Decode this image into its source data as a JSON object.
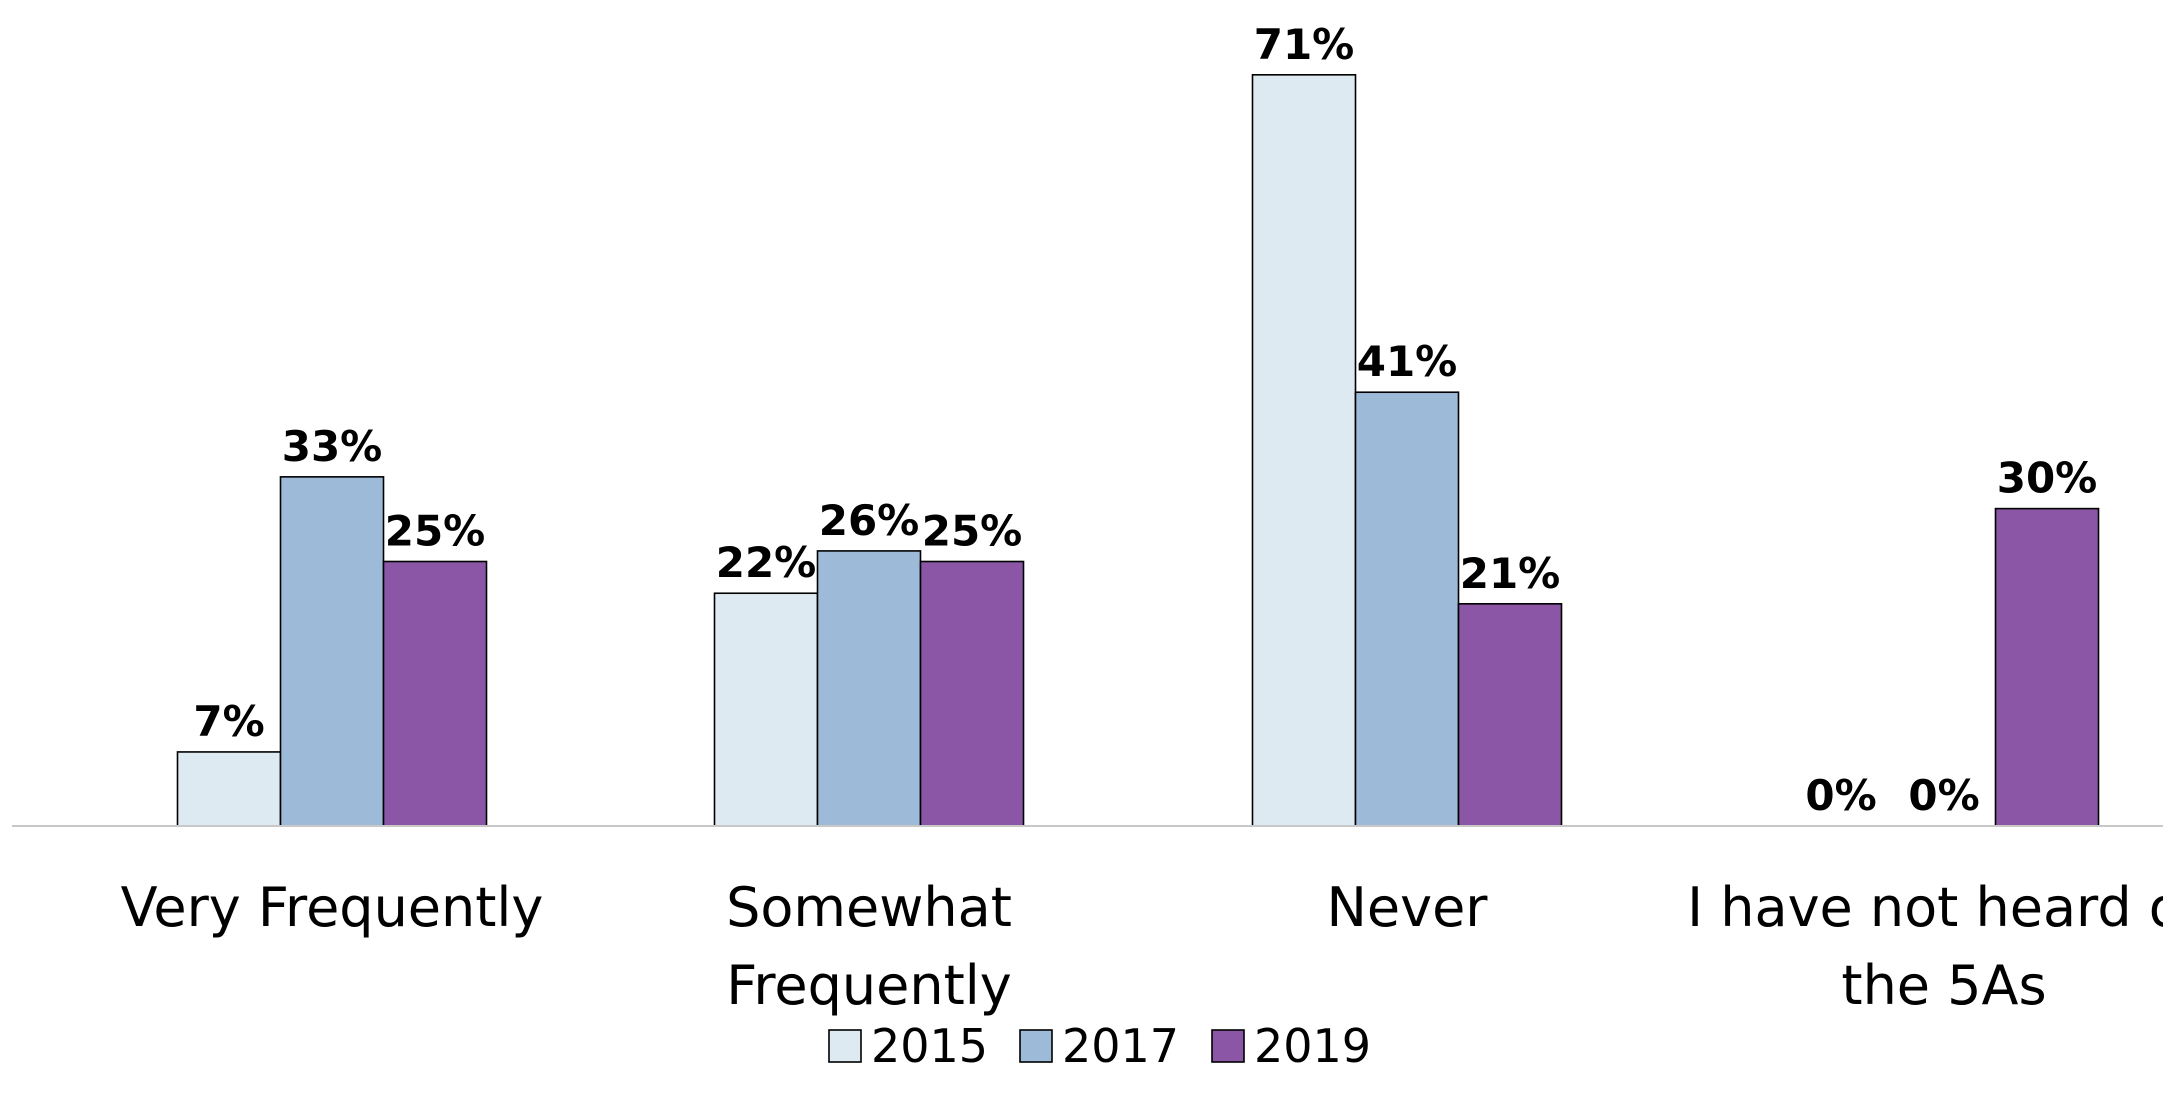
{
  "chart_data": {
    "type": "bar",
    "title": "",
    "xlabel": "",
    "ylabel": "",
    "ylim": [
      0,
      75
    ],
    "grid": false,
    "legend_position": "bottom",
    "value_suffix": "%",
    "categories": [
      [
        "Very Frequently"
      ],
      [
        "Somewhat",
        "Frequently"
      ],
      [
        "Never"
      ],
      [
        "I have not heard of",
        "the 5As"
      ]
    ],
    "series": [
      {
        "name": "2015",
        "color": "#DEEAF1",
        "values": [
          7,
          22,
          71,
          0
        ]
      },
      {
        "name": "2017",
        "color": "#9DBAD9",
        "values": [
          33,
          26,
          41,
          0
        ]
      },
      {
        "name": "2019",
        "color": "#8A56A5",
        "values": [
          25,
          25,
          21,
          30
        ]
      }
    ]
  }
}
